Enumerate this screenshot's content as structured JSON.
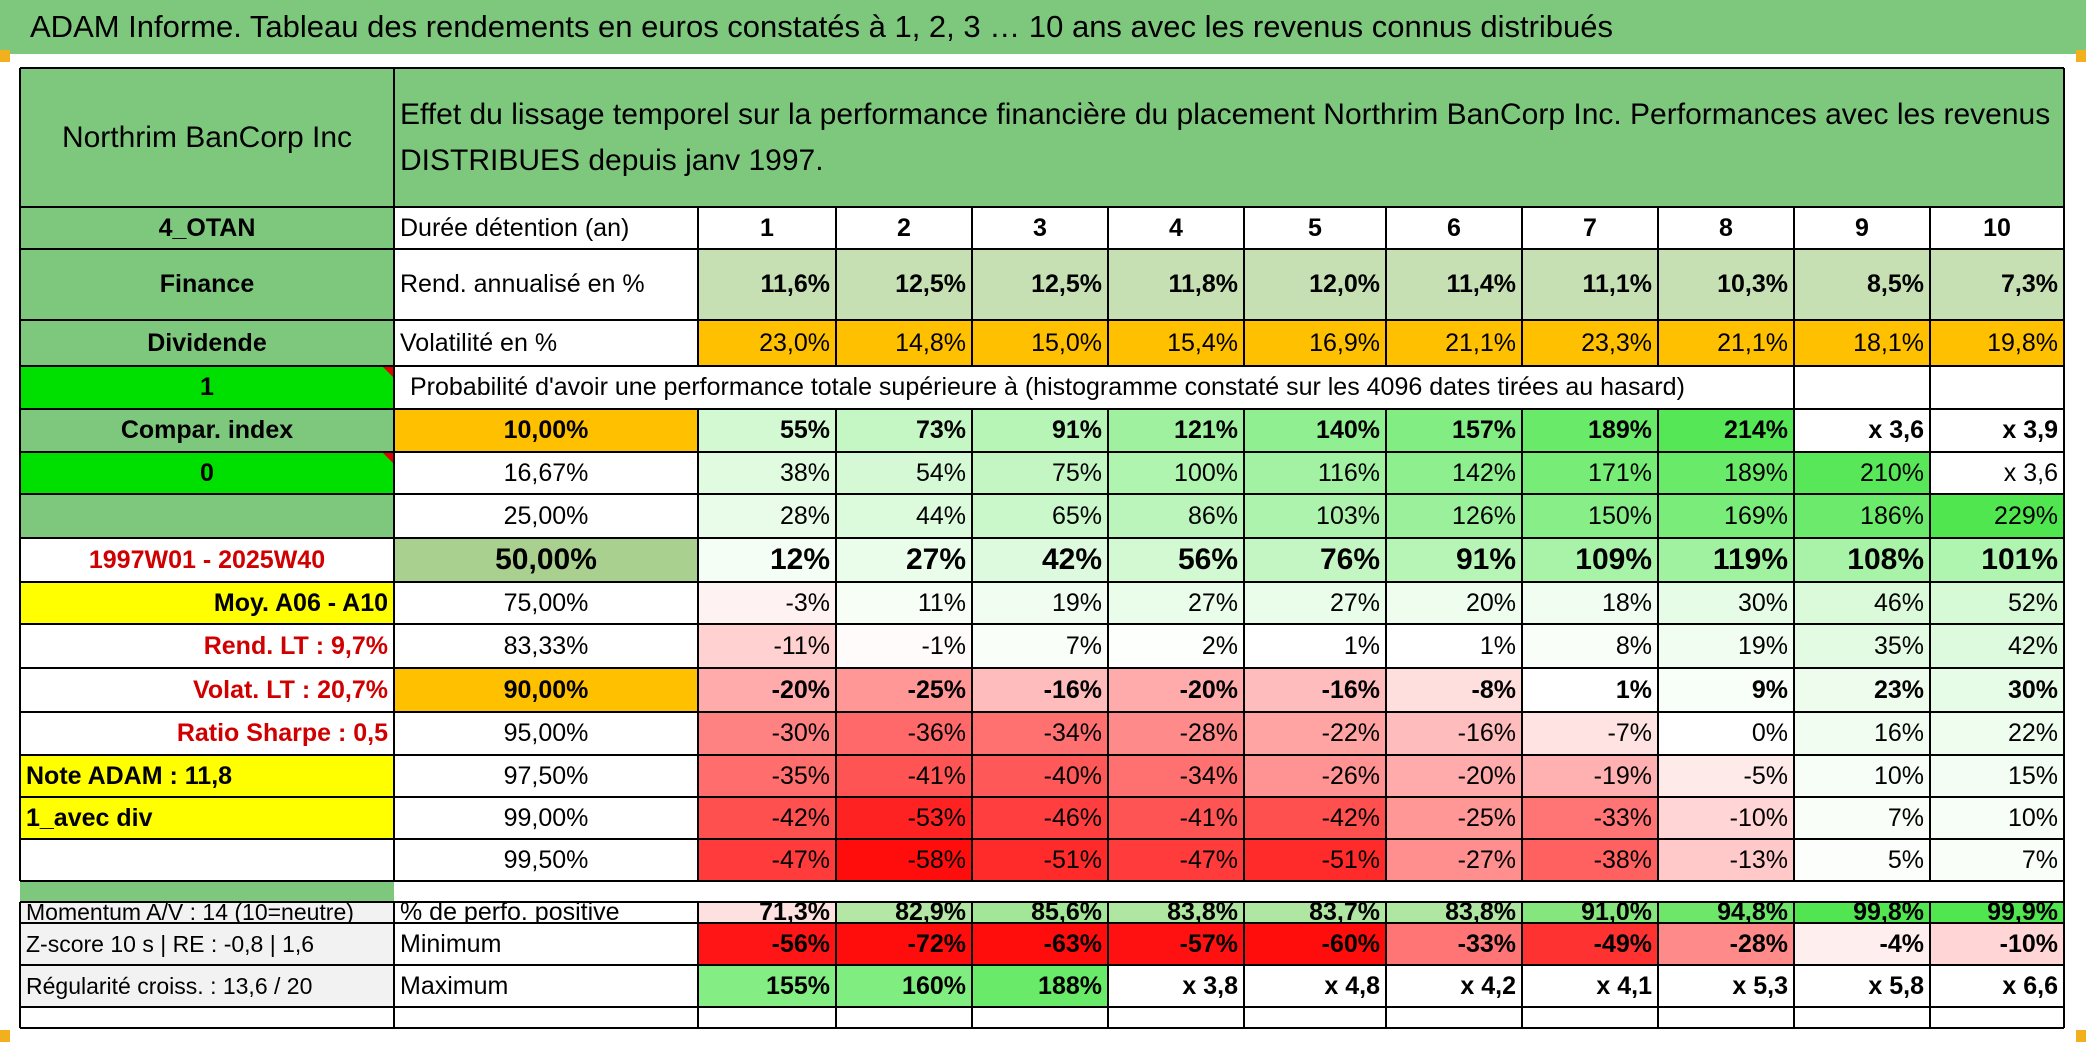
{
  "title": "ADAM Informe. Tableau des rendements en euros constatés à 1, 2, 3 … 10 ans avec les revenus connus distribués",
  "header": {
    "name": "Northrim BanCorp Inc",
    "description": "Effet du lissage temporel sur la performance financière du placement Northrim BanCorp Inc. Performances avec les revenus DISTRIBUES depuis janv 1997."
  },
  "left_labels": [
    "4_OTAN",
    "Finance",
    "Dividende",
    "1",
    "Compar. index",
    "0",
    "",
    "1997W01 - 2025W40",
    "Moy. A06 - A10",
    "Rend. LT :   9,7%",
    "Volat. LT :   20,7%",
    "Ratio Sharpe :   0,5",
    "Note ADAM : 11,8",
    "1_avec div",
    ""
  ],
  "row_labels": {
    "duration": "Durée détention (an)",
    "return": "Rend. annualisé en %",
    "volatility": "Volatilité en %",
    "probability": "Probabilité d'avoir une performance totale supérieure à (histogramme constaté sur les 4096 dates tirées au hasard)"
  },
  "years": [
    "1",
    "2",
    "3",
    "4",
    "5",
    "6",
    "7",
    "8",
    "9",
    "10"
  ],
  "annual_return": [
    "11,6%",
    "12,5%",
    "12,5%",
    "11,8%",
    "12,0%",
    "11,4%",
    "11,1%",
    "10,3%",
    "8,5%",
    "7,3%"
  ],
  "volatility": [
    "23,0%",
    "14,8%",
    "15,0%",
    "15,4%",
    "16,9%",
    "21,1%",
    "23,3%",
    "21,1%",
    "18,1%",
    "19,8%"
  ],
  "percentiles": [
    {
      "p": "10,00%",
      "values": [
        "55%",
        "73%",
        "91%",
        "121%",
        "140%",
        "157%",
        "189%",
        "214%",
        "x 3,6",
        "x 3,9"
      ]
    },
    {
      "p": "16,67%",
      "values": [
        "38%",
        "54%",
        "75%",
        "100%",
        "116%",
        "142%",
        "171%",
        "189%",
        "210%",
        "x 3,6"
      ]
    },
    {
      "p": "25,00%",
      "values": [
        "28%",
        "44%",
        "65%",
        "86%",
        "103%",
        "126%",
        "150%",
        "169%",
        "186%",
        "229%"
      ]
    },
    {
      "p": "50,00%",
      "values": [
        "12%",
        "27%",
        "42%",
        "56%",
        "76%",
        "91%",
        "109%",
        "119%",
        "108%",
        "101%"
      ]
    },
    {
      "p": "75,00%",
      "values": [
        "-3%",
        "11%",
        "19%",
        "27%",
        "27%",
        "20%",
        "18%",
        "30%",
        "46%",
        "52%"
      ]
    },
    {
      "p": "83,33%",
      "values": [
        "-11%",
        "-1%",
        "7%",
        "2%",
        "1%",
        "1%",
        "8%",
        "19%",
        "35%",
        "42%"
      ]
    },
    {
      "p": "90,00%",
      "values": [
        "-20%",
        "-25%",
        "-16%",
        "-20%",
        "-16%",
        "-8%",
        "1%",
        "9%",
        "23%",
        "30%"
      ]
    },
    {
      "p": "95,00%",
      "values": [
        "-30%",
        "-36%",
        "-34%",
        "-28%",
        "-22%",
        "-16%",
        "-7%",
        "0%",
        "16%",
        "22%"
      ]
    },
    {
      "p": "97,50%",
      "values": [
        "-35%",
        "-41%",
        "-40%",
        "-34%",
        "-26%",
        "-20%",
        "-19%",
        "-5%",
        "10%",
        "15%"
      ]
    },
    {
      "p": "99,00%",
      "values": [
        "-42%",
        "-53%",
        "-46%",
        "-41%",
        "-42%",
        "-25%",
        "-33%",
        "-10%",
        "7%",
        "10%"
      ]
    },
    {
      "p": "99,50%",
      "values": [
        "-47%",
        "-58%",
        "-51%",
        "-47%",
        "-51%",
        "-27%",
        "-38%",
        "-13%",
        "5%",
        "7%"
      ]
    }
  ],
  "bottom": [
    {
      "left": "Momentum A/V : 14 (10=neutre)",
      "label": "% de perfo. positive",
      "values": [
        "71,3%",
        "82,9%",
        "85,6%",
        "83,8%",
        "83,7%",
        "83,8%",
        "91,0%",
        "94,8%",
        "99,8%",
        "99,9%"
      ]
    },
    {
      "left": "Z-score 10 s | RE : -0,8 | 1,6",
      "label": "Minimum",
      "values": [
        "-56%",
        "-72%",
        "-63%",
        "-57%",
        "-60%",
        "-33%",
        "-49%",
        "-28%",
        "-4%",
        "-10%"
      ]
    },
    {
      "left": "Régularité croiss. : 13,6 / 20",
      "label": "Maximum",
      "values": [
        "155%",
        "160%",
        "188%",
        "x 3,8",
        "x 4,8",
        "x 4,2",
        "x 4,1",
        "x 5,3",
        "x 5,8",
        "x 6,6"
      ]
    }
  ],
  "colors": {
    "title_green": "#7ec87e",
    "header_green": "#7ec87e",
    "left_green": "#7ec87e",
    "bright_green": "#00e000",
    "yellow": "#ffff00",
    "orange": "#ffc000",
    "return_green": "#c6e0b4",
    "median_green": "#a9d08e",
    "bottom_grey": "#f2f2f2"
  }
}
